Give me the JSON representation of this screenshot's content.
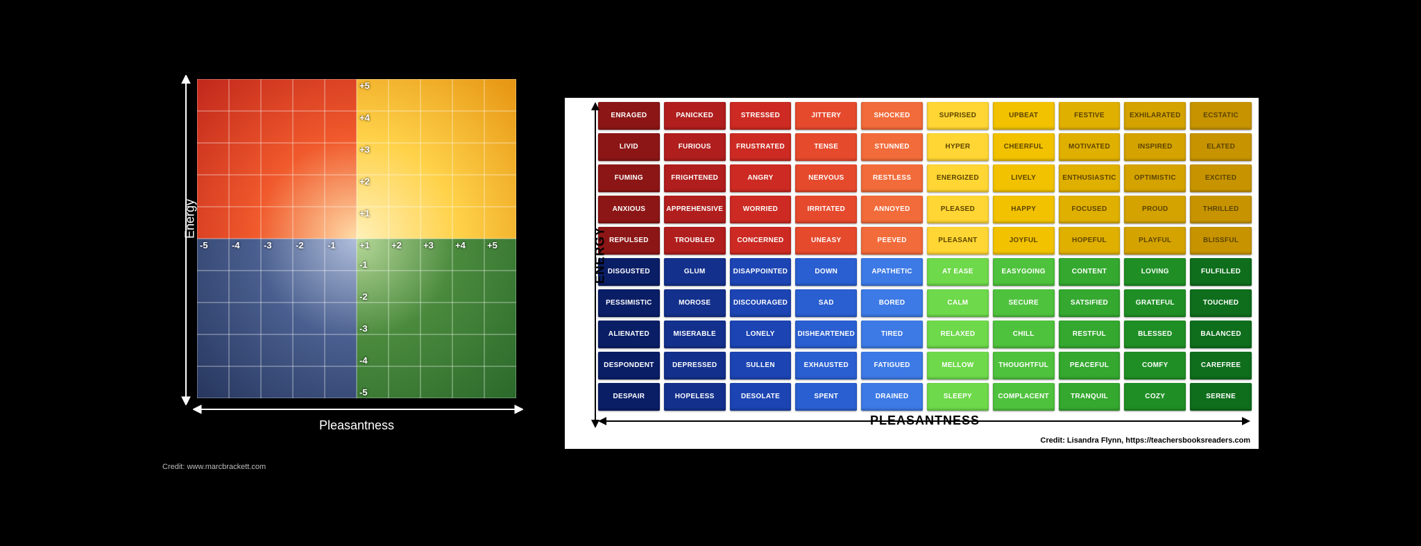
{
  "left_chart": {
    "type": "quadrant-grid",
    "grid_size": 10,
    "y_axis_label": "Energy",
    "x_axis_label": "Pleasantness",
    "credit": "Credit: www.marcbrackett.com",
    "y_ticks_pos": [
      "+5",
      "+4",
      "+3",
      "+2",
      "+1",
      "-1",
      "-2",
      "-3",
      "-4",
      "-5"
    ],
    "x_ticks_neg": [
      "-5",
      "-4",
      "-3",
      "-2",
      "-1"
    ],
    "x_ticks_pos": [
      "+1",
      "+2",
      "+3",
      "+4",
      "+5"
    ],
    "quadrant_colors": {
      "top_left_outer": "#d42a1f",
      "top_left_inner": "#f05a2c",
      "top_right_outer": "#f5a623",
      "top_right_inner": "#ffd24a",
      "bottom_left_outer": "#27375f",
      "bottom_left_inner": "#4a5f8f",
      "bottom_right_outer": "#2b6a2b",
      "bottom_right_inner": "#4a8a3d",
      "center_glow": "#ffffff"
    },
    "gridline_color": "#ffffff",
    "background": "#000000",
    "label_color": "#ffffff",
    "label_fontsize": 13
  },
  "right_chart": {
    "type": "mood-meter-grid",
    "rows": 10,
    "cols": 10,
    "y_axis_label": "ENERGY",
    "x_axis_label": "PLEASANTNESS",
    "credit": "Credit: Lisandra Flynn, https://teachersbooksreaders.com",
    "cell_fontsize": 10,
    "cell_fontweight": 900,
    "background": "#ffffff",
    "column_colors": [
      "#8c1616",
      "#b01e1e",
      "#cc2a22",
      "#e64a2d",
      "#f26b3a",
      "#ffd633",
      "#f2c200",
      "#e0b000",
      "#d4a300",
      "#c79400"
    ],
    "column_colors_bottom": [
      "#0a1e66",
      "#13308c",
      "#1c44b3",
      "#2a5fd1",
      "#3d7ae6",
      "#6ed94a",
      "#4fc23d",
      "#34a82f",
      "#1f8f25",
      "#0e6e1c"
    ],
    "text_colors_top_left": "#ffffff",
    "text_colors_top_right": "#5c4400",
    "text_colors_bottom_left": "#ffffff",
    "text_colors_bottom_right": "#ffffff",
    "cells": [
      [
        "ENRAGED",
        "PANICKED",
        "STRESSED",
        "JITTERY",
        "SHOCKED",
        "SUPRISED",
        "UPBEAT",
        "FESTIVE",
        "EXHILARATED",
        "ECSTATIC"
      ],
      [
        "LIVID",
        "FURIOUS",
        "FRUSTRATED",
        "TENSE",
        "STUNNED",
        "HYPER",
        "CHEERFUL",
        "MOTIVATED",
        "INSPIRED",
        "ELATED"
      ],
      [
        "FUMING",
        "FRIGHTENED",
        "ANGRY",
        "NERVOUS",
        "RESTLESS",
        "ENERGIZED",
        "LIVELY",
        "ENTHUSIASTIC",
        "OPTIMISTIC",
        "EXCITED"
      ],
      [
        "ANXIOUS",
        "APPREHENSIVE",
        "WORRIED",
        "IRRITATED",
        "ANNOYED",
        "PLEASED",
        "HAPPY",
        "FOCUSED",
        "PROUD",
        "THRILLED"
      ],
      [
        "REPULSED",
        "TROUBLED",
        "CONCERNED",
        "UNEASY",
        "PEEVED",
        "PLEASANT",
        "JOYFUL",
        "HOPEFUL",
        "PLAYFUL",
        "BLISSFUL"
      ],
      [
        "DISGUSTED",
        "GLUM",
        "DISAPPOINTED",
        "DOWN",
        "APATHETIC",
        "AT EASE",
        "EASYGOING",
        "CONTENT",
        "LOVING",
        "FULFILLED"
      ],
      [
        "PESSIMISTIC",
        "MOROSE",
        "DISCOURAGED",
        "SAD",
        "BORED",
        "CALM",
        "SECURE",
        "SATSIFIED",
        "GRATEFUL",
        "TOUCHED"
      ],
      [
        "ALIENATED",
        "MISERABLE",
        "LONELY",
        "DISHEARTENED",
        "TIRED",
        "RELAXED",
        "CHILL",
        "RESTFUL",
        "BLESSED",
        "BALANCED"
      ],
      [
        "DESPONDENT",
        "DEPRESSED",
        "SULLEN",
        "EXHAUSTED",
        "FATIGUED",
        "MELLOW",
        "THOUGHTFUL",
        "PEACEFUL",
        "COMFY",
        "CAREFREE"
      ],
      [
        "DESPAIR",
        "HOPELESS",
        "DESOLATE",
        "SPENT",
        "DRAINED",
        "SLEEPY",
        "COMPLACENT",
        "TRANQUIL",
        "COZY",
        "SERENE"
      ]
    ]
  }
}
